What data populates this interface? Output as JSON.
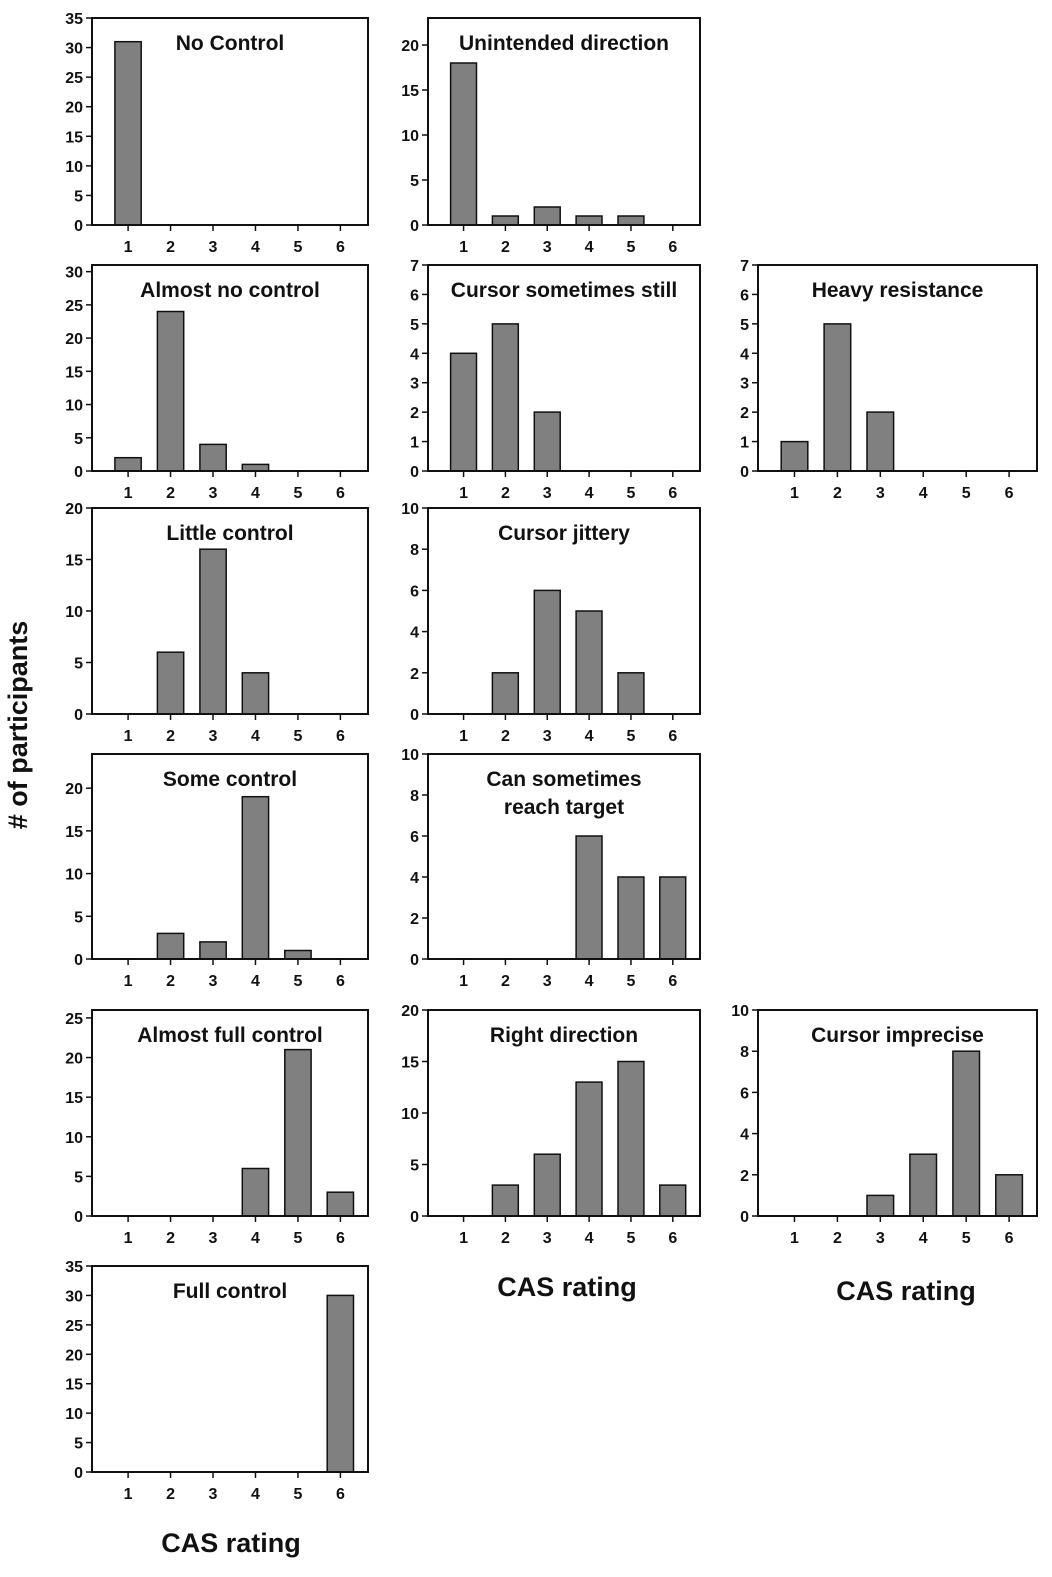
{
  "figure": {
    "ylabel": "# of participants",
    "xlabel": "CAS rating"
  },
  "chart_data": [
    {
      "type": "bar",
      "title": "No Control",
      "categories": [
        "1",
        "2",
        "3",
        "4",
        "5",
        "6"
      ],
      "values": [
        31,
        0,
        0,
        0,
        0,
        0
      ],
      "ylim": [
        0,
        35
      ],
      "yticks": [
        0,
        5,
        10,
        15,
        20,
        25,
        30,
        35
      ],
      "xlabel": "",
      "ylabel": ""
    },
    {
      "type": "bar",
      "title": "Unintended direction",
      "categories": [
        "1",
        "2",
        "3",
        "4",
        "5",
        "6"
      ],
      "values": [
        18,
        1,
        2,
        1,
        1,
        0
      ],
      "ylim": [
        0,
        23
      ],
      "yticks": [
        0,
        5,
        10,
        15,
        20
      ],
      "xlabel": "",
      "ylabel": ""
    },
    {
      "type": "bar",
      "title": "Almost no control",
      "categories": [
        "1",
        "2",
        "3",
        "4",
        "5",
        "6"
      ],
      "values": [
        2,
        24,
        4,
        1,
        0,
        0
      ],
      "ylim": [
        0,
        31
      ],
      "yticks": [
        0,
        5,
        10,
        15,
        20,
        25,
        30
      ],
      "xlabel": "",
      "ylabel": ""
    },
    {
      "type": "bar",
      "title": "Cursor sometimes still",
      "categories": [
        "1",
        "2",
        "3",
        "4",
        "5",
        "6"
      ],
      "values": [
        4,
        5,
        2,
        0,
        0,
        0
      ],
      "ylim": [
        0,
        7
      ],
      "yticks": [
        0,
        1,
        2,
        3,
        4,
        5,
        6,
        7
      ],
      "xlabel": "",
      "ylabel": ""
    },
    {
      "type": "bar",
      "title": "Heavy resistance",
      "categories": [
        "1",
        "2",
        "3",
        "4",
        "5",
        "6"
      ],
      "values": [
        1,
        5,
        2,
        0,
        0,
        0
      ],
      "ylim": [
        0,
        7
      ],
      "yticks": [
        0,
        1,
        2,
        3,
        4,
        5,
        6,
        7
      ],
      "xlabel": "",
      "ylabel": ""
    },
    {
      "type": "bar",
      "title": "Little control",
      "categories": [
        "1",
        "2",
        "3",
        "4",
        "5",
        "6"
      ],
      "values": [
        0,
        6,
        16,
        4,
        0,
        0
      ],
      "ylim": [
        0,
        20
      ],
      "yticks": [
        0,
        5,
        10,
        15,
        20
      ],
      "xlabel": "",
      "ylabel": ""
    },
    {
      "type": "bar",
      "title": "Cursor jittery",
      "categories": [
        "1",
        "2",
        "3",
        "4",
        "5",
        "6"
      ],
      "values": [
        0,
        2,
        6,
        5,
        2,
        0
      ],
      "ylim": [
        0,
        10
      ],
      "yticks": [
        0,
        2,
        4,
        6,
        8,
        10
      ],
      "xlabel": "",
      "ylabel": ""
    },
    {
      "type": "bar",
      "title": "Some control",
      "categories": [
        "1",
        "2",
        "3",
        "4",
        "5",
        "6"
      ],
      "values": [
        0,
        3,
        2,
        19,
        1,
        0
      ],
      "ylim": [
        0,
        24
      ],
      "yticks": [
        0,
        5,
        10,
        15,
        20
      ],
      "xlabel": "",
      "ylabel": ""
    },
    {
      "type": "bar",
      "title": "Can sometimes",
      "title2": "reach target",
      "categories": [
        "1",
        "2",
        "3",
        "4",
        "5",
        "6"
      ],
      "values": [
        0,
        0,
        0,
        6,
        4,
        4
      ],
      "ylim": [
        0,
        10
      ],
      "yticks": [
        0,
        2,
        4,
        6,
        8,
        10
      ],
      "xlabel": "",
      "ylabel": ""
    },
    {
      "type": "bar",
      "title": "Almost full control",
      "categories": [
        "1",
        "2",
        "3",
        "4",
        "5",
        "6"
      ],
      "values": [
        0,
        0,
        0,
        6,
        21,
        3
      ],
      "ylim": [
        0,
        26
      ],
      "yticks": [
        0,
        5,
        10,
        15,
        20,
        25
      ],
      "xlabel": "",
      "ylabel": ""
    },
    {
      "type": "bar",
      "title": "Right direction",
      "categories": [
        "1",
        "2",
        "3",
        "4",
        "5",
        "6"
      ],
      "values": [
        0,
        3,
        6,
        13,
        15,
        3
      ],
      "ylim": [
        0,
        20
      ],
      "yticks": [
        0,
        5,
        10,
        15,
        20
      ],
      "xlabel": "CAS rating",
      "ylabel": ""
    },
    {
      "type": "bar",
      "title": "Cursor imprecise",
      "categories": [
        "1",
        "2",
        "3",
        "4",
        "5",
        "6"
      ],
      "values": [
        0,
        0,
        1,
        3,
        8,
        2
      ],
      "ylim": [
        0,
        10
      ],
      "yticks": [
        0,
        2,
        4,
        6,
        8,
        10
      ],
      "xlabel": "CAS rating",
      "ylabel": ""
    },
    {
      "type": "bar",
      "title": "Full control",
      "categories": [
        "1",
        "2",
        "3",
        "4",
        "5",
        "6"
      ],
      "values": [
        0,
        0,
        0,
        0,
        0,
        30
      ],
      "ylim": [
        0,
        35
      ],
      "yticks": [
        0,
        5,
        10,
        15,
        20,
        25,
        30,
        35
      ],
      "xlabel": "CAS rating",
      "ylabel": ""
    }
  ],
  "colors": {
    "bar": "#808080",
    "axis": "#111111",
    "background": "#ffffff"
  }
}
